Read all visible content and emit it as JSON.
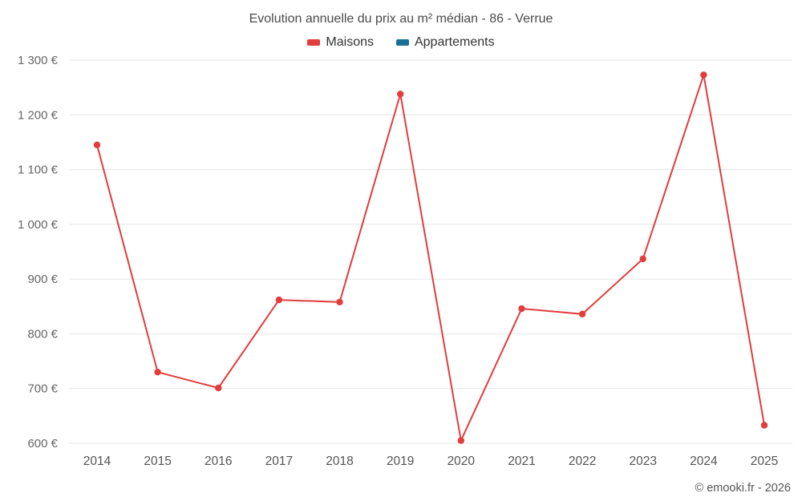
{
  "title": "Evolution annuelle du prix au m² médian - 86 - Verrue",
  "legend": [
    {
      "label": "Maisons",
      "color": "#e23c3c"
    },
    {
      "label": "Appartements",
      "color": "#1a6f97"
    }
  ],
  "footer": "© emooki.fr - 2026",
  "colors": {
    "gridline": "#e6e6e6",
    "axis_text": "#666666",
    "title_text": "#4a4a4a"
  },
  "chart_data": {
    "type": "line",
    "categories": [
      "2014",
      "2015",
      "2016",
      "2017",
      "2018",
      "2019",
      "2020",
      "2021",
      "2022",
      "2023",
      "2024",
      "2025"
    ],
    "series": [
      {
        "name": "Maisons",
        "color": "#e23c3c",
        "values": [
          1145,
          730,
          701,
          862,
          858,
          1238,
          605,
          846,
          836,
          937,
          1273,
          633
        ]
      },
      {
        "name": "Appartements",
        "color": "#1a6f97",
        "values": []
      }
    ],
    "title": "Evolution annuelle du prix au m² médian - 86 - Verrue",
    "xlabel": "",
    "ylabel": "",
    "ylim": [
      600,
      1300
    ],
    "ytick_step": 100,
    "ytick_suffix": " €",
    "grid": true,
    "legend_position": "top"
  }
}
